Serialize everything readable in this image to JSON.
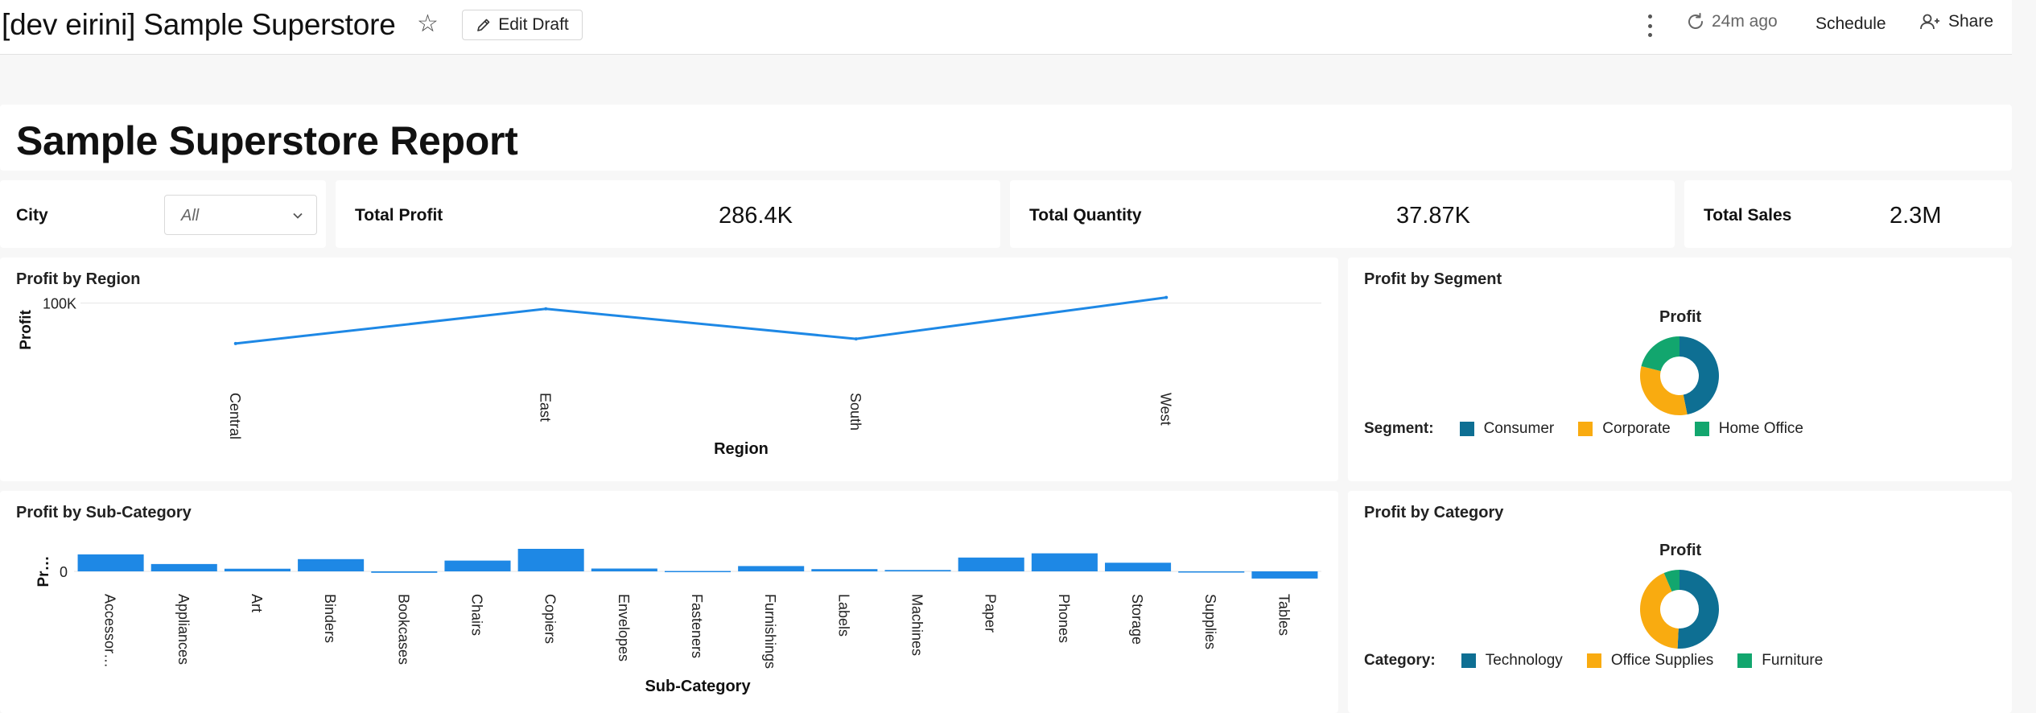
{
  "header": {
    "title": "[dev eirini] Sample Superstore",
    "edit_label": "Edit Draft",
    "refresh_time": "24m ago",
    "schedule_label": "Schedule",
    "share_label": "Share"
  },
  "report": {
    "title": "Sample Superstore Report"
  },
  "filter": {
    "label": "City",
    "value": "All"
  },
  "kpis": [
    {
      "label": "Total Profit",
      "value": "286.4K"
    },
    {
      "label": "Total Quantity",
      "value": "37.87K"
    },
    {
      "label": "Total Sales",
      "value": "2.3M"
    }
  ],
  "colors": {
    "line": "#1e88e5",
    "bar": "#1e88e5",
    "teal": "#0e6f93",
    "amber": "#f9ab10",
    "green": "#12a66e"
  },
  "chart_data": [
    {
      "type": "line",
      "title": "Profit by Region",
      "xlabel": "Region",
      "ylabel": "Profit",
      "categories": [
        "Central",
        "East",
        "South",
        "West"
      ],
      "values": [
        39700,
        91500,
        46700,
        108400
      ],
      "y_ticks": [
        {
          "value": 100000,
          "label": "100K"
        }
      ],
      "ylim": [
        0,
        120000
      ]
    },
    {
      "type": "bar",
      "title": "Profit by Sub-Category",
      "xlabel": "Sub-Category",
      "ylabel": "Pr…",
      "categories": [
        "Accessor…",
        "Appliances",
        "Art",
        "Binders",
        "Bookcases",
        "Chairs",
        "Copiers",
        "Envelopes",
        "Fasteners",
        "Furnishings",
        "Labels",
        "Machines",
        "Paper",
        "Phones",
        "Storage",
        "Supplies",
        "Tables"
      ],
      "values": [
        41900,
        18100,
        6500,
        30200,
        -3500,
        26600,
        55600,
        6960,
        950,
        13100,
        5550,
        3380,
        34100,
        44500,
        21300,
        -1200,
        -17700
      ],
      "y_ticks": [
        {
          "value": 0,
          "label": "0"
        }
      ],
      "ylim": [
        -20000,
        60000
      ]
    },
    {
      "type": "pie",
      "title": "Profit by Segment",
      "pie_title": "Profit",
      "legend_title": "Segment:",
      "series": [
        {
          "name": "Consumer",
          "value": 134100,
          "color": "#0e6f93"
        },
        {
          "name": "Corporate",
          "value": 91900,
          "color": "#f9ab10"
        },
        {
          "name": "Home Office",
          "value": 60300,
          "color": "#12a66e"
        }
      ]
    },
    {
      "type": "pie",
      "title": "Profit by Category",
      "pie_title": "Profit",
      "legend_title": "Category:",
      "series": [
        {
          "name": "Technology",
          "value": 145500,
          "color": "#0e6f93"
        },
        {
          "name": "Office Supplies",
          "value": 122500,
          "color": "#f9ab10"
        },
        {
          "name": "Furniture",
          "value": 18500,
          "color": "#12a66e"
        }
      ]
    }
  ]
}
